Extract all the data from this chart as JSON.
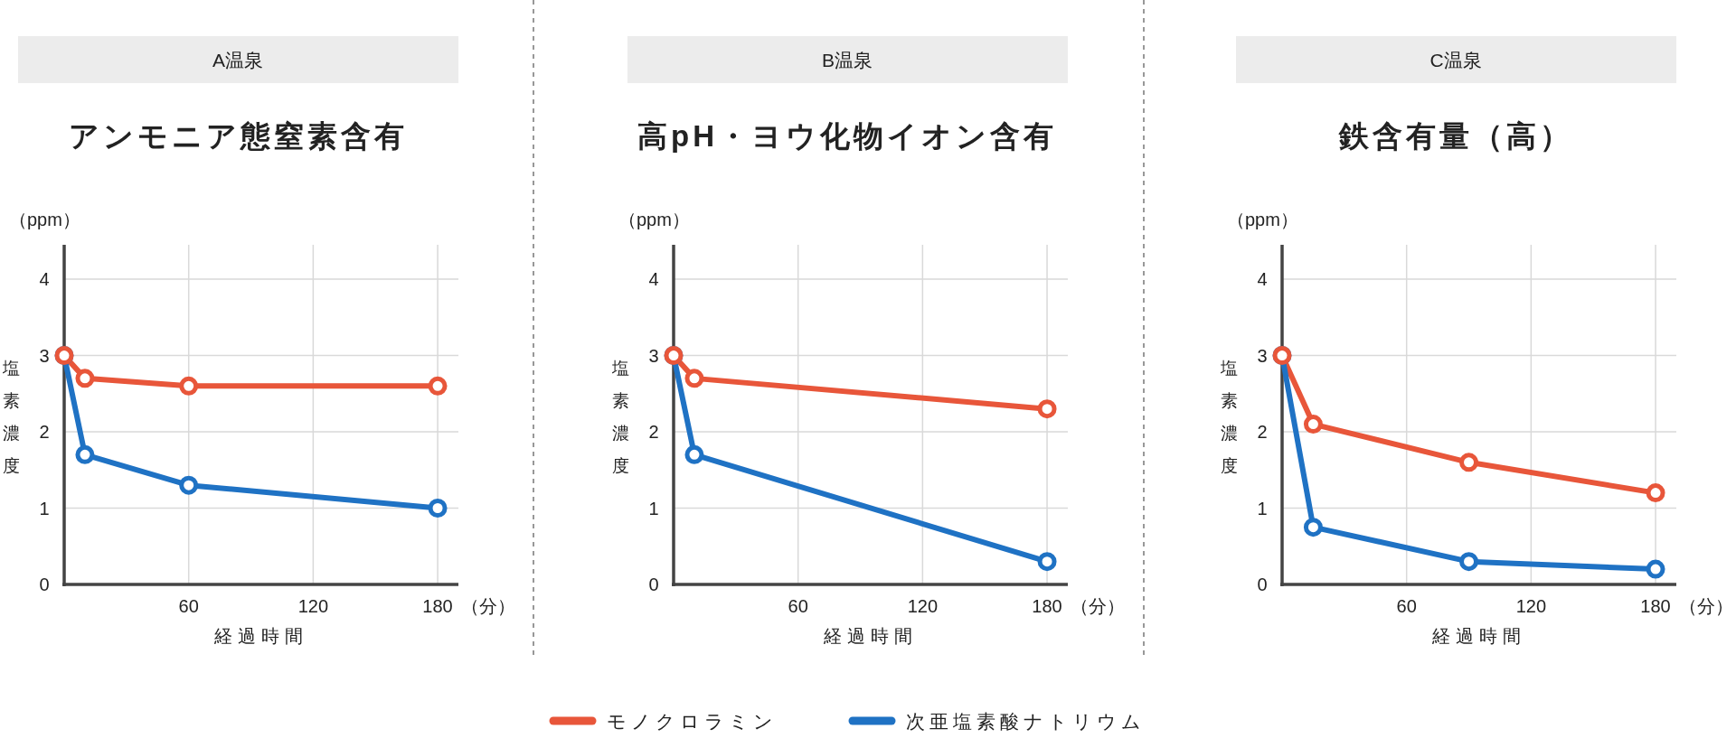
{
  "chart_data": [
    {
      "type": "line",
      "title": "A温泉",
      "subtitle": "アンモニア態窒素含有",
      "xlabel": "経過時間",
      "ylabel": "塩素濃度",
      "annotations": [
        "（ppm）",
        "（分）"
      ],
      "xlim": [
        0,
        190
      ],
      "ylim": [
        0,
        4.45
      ],
      "xticks": [
        60,
        120,
        180
      ],
      "yticks": [
        0,
        1,
        2,
        3,
        4
      ],
      "grid": true,
      "legend": "bottom",
      "marker": "circle",
      "line_style": "solid",
      "series": [
        {
          "name": "モノクロラミン",
          "color": "#e8563a",
          "x": [
            0,
            10,
            60,
            180
          ],
          "values": [
            3,
            2.7,
            2.6,
            2.6
          ]
        },
        {
          "name": "次亜塩素酸ナトリウム",
          "color": "#1f72c4",
          "x": [
            0,
            10,
            60,
            180
          ],
          "values": [
            3,
            1.7,
            1.3,
            1.0
          ]
        }
      ]
    },
    {
      "type": "line",
      "title": "B温泉",
      "subtitle": "高pH・ヨウ化物イオン含有",
      "xlabel": "経過時間",
      "ylabel": "塩素濃度",
      "annotations": [
        "（ppm）",
        "（分）"
      ],
      "xlim": [
        0,
        190
      ],
      "ylim": [
        0,
        4.45
      ],
      "xticks": [
        60,
        120,
        180
      ],
      "yticks": [
        0,
        1,
        2,
        3,
        4
      ],
      "grid": true,
      "marker": "circle",
      "line_style": "solid",
      "series": [
        {
          "color": "#e8563a",
          "x": [
            0,
            10,
            180
          ],
          "values": [
            3,
            2.7,
            2.3
          ]
        },
        {
          "color": "#1f72c4",
          "x": [
            0,
            10,
            180
          ],
          "values": [
            3,
            1.7,
            0.3
          ]
        }
      ]
    },
    {
      "type": "line",
      "title": "C温泉",
      "subtitle": "鉄含有量（高）",
      "xlabel": "経過時間",
      "ylabel": "塩素濃度",
      "annotations": [
        "（ppm）",
        "（分）"
      ],
      "xlim": [
        0,
        190
      ],
      "ylim": [
        0,
        4.45
      ],
      "xticks": [
        60,
        120,
        180
      ],
      "yticks": [
        0,
        1,
        2,
        3,
        4
      ],
      "grid": true,
      "marker": "circle",
      "line_style": "solid",
      "series": [
        {
          "color": "#e8563a",
          "x": [
            0,
            15,
            90,
            180
          ],
          "values": [
            3,
            2.1,
            1.6,
            1.2
          ]
        },
        {
          "color": "#1f72c4",
          "x": [
            0,
            15,
            90,
            180
          ],
          "values": [
            3,
            0.75,
            0.3,
            0.2
          ]
        }
      ]
    }
  ]
}
